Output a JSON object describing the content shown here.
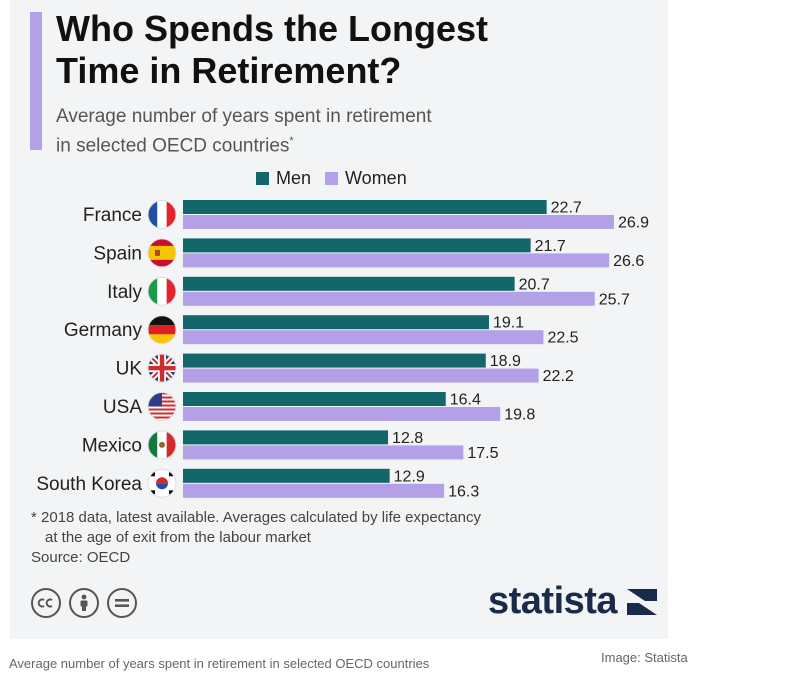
{
  "header": {
    "title_line1": "Who Spends the Longest",
    "title_line2": "Time in Retirement?",
    "subtitle_line1": "Average number of years spent in retirement",
    "subtitle_line2": "in selected OECD countries",
    "subtitle_mark": "*"
  },
  "legend": {
    "men_label": "Men",
    "women_label": "Women"
  },
  "colors": {
    "men": "#13676b",
    "women": "#b3a0e6",
    "accent": "#b3a0e6",
    "brand": "#1a2b4a"
  },
  "chart_data": {
    "type": "bar",
    "orientation": "horizontal",
    "categories": [
      "France",
      "Spain",
      "Italy",
      "Germany",
      "UK",
      "USA",
      "Mexico",
      "South Korea"
    ],
    "flags": [
      "flag-france-icon",
      "flag-spain-icon",
      "flag-italy-icon",
      "flag-germany-icon",
      "flag-uk-icon",
      "flag-usa-icon",
      "flag-mexico-icon",
      "flag-south-korea-icon"
    ],
    "series": [
      {
        "name": "Men",
        "values": [
          22.7,
          21.7,
          20.7,
          19.1,
          18.9,
          16.4,
          12.8,
          12.9
        ]
      },
      {
        "name": "Women",
        "values": [
          26.9,
          26.6,
          25.7,
          22.5,
          22.2,
          19.8,
          17.5,
          16.3
        ]
      }
    ],
    "title": "Who Spends the Longest Time in Retirement?",
    "xlim": [
      0,
      27
    ],
    "legend_position": "top",
    "grid": false
  },
  "footnote": {
    "line1": "* 2018 data, latest available. Averages calculated by life expectancy",
    "line2": "at the age of exit from the labour market",
    "source": "Source: OECD"
  },
  "brand": {
    "name": "statista"
  },
  "caption": "Average number of years spent in retirement in selected OECD countries",
  "credit": "Image: Statista",
  "license_icons": [
    "cc-icon",
    "by-icon",
    "nd-icon"
  ]
}
